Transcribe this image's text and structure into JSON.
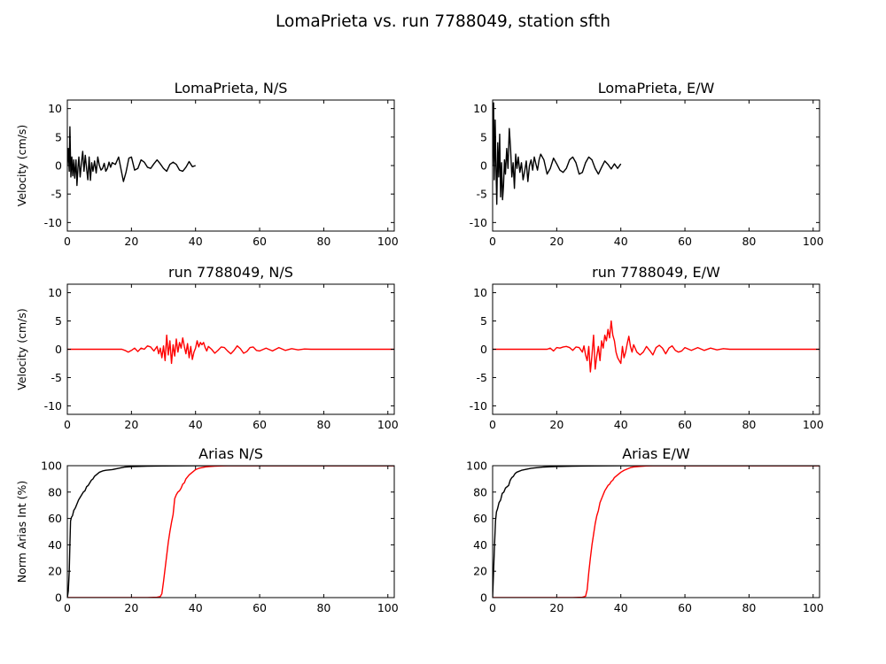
{
  "figure": {
    "title": "LomaPrieta vs. run 7788049, station sfth"
  },
  "colors": {
    "recorded": "#000000",
    "simulated": "#ff0000"
  },
  "chart_data": [
    {
      "id": "p00",
      "type": "line",
      "title": "LomaPrieta, N/S",
      "ylabel": "Velocity (cm/s)",
      "xlim": [
        0,
        102
      ],
      "ylim": [
        -11.5,
        11.5
      ],
      "xticks": [
        0,
        20,
        40,
        60,
        80,
        100
      ],
      "yticks": [
        -10,
        -5,
        0,
        5,
        10
      ],
      "series": [
        {
          "color": "#000000",
          "x": [
            0,
            0.3,
            0.6,
            0.8,
            1.1,
            1.4,
            1.7,
            2,
            2.3,
            2.7,
            3,
            3.3,
            3.6,
            4,
            4.4,
            4.8,
            5.2,
            5.6,
            6,
            6.4,
            6.8,
            7.2,
            7.6,
            8,
            8.5,
            9,
            9.5,
            10,
            10.5,
            11,
            11.5,
            12,
            12.5,
            13,
            13.5,
            14,
            15,
            16,
            16.8,
            17.5,
            18.3,
            19.2,
            20,
            21,
            22,
            23,
            24,
            25,
            26,
            27,
            28,
            29,
            30,
            31,
            32,
            33,
            34,
            35,
            36,
            37,
            38,
            39,
            40
          ],
          "y": [
            0,
            3,
            -1,
            6.8,
            -2,
            1.5,
            -1.8,
            1,
            -2.2,
            1,
            -3.5,
            -0.5,
            1.5,
            -2,
            0.5,
            2.5,
            -1,
            1.8,
            -0.5,
            -2.5,
            1.5,
            -2.6,
            0.5,
            -1,
            0.8,
            -1.3,
            1.5,
            0,
            -0.8,
            -0.5,
            0.4,
            -1,
            -0.5,
            0.6,
            -0.3,
            0.5,
            0.2,
            1.5,
            -0.8,
            -2.8,
            -1.2,
            1.3,
            1.5,
            -0.8,
            -0.5,
            1,
            0.6,
            -0.3,
            -0.5,
            0.3,
            1,
            0.3,
            -0.5,
            -1,
            0.2,
            0.6,
            0.2,
            -0.8,
            -1,
            -0.3,
            0.7,
            -0.2,
            0
          ]
        }
      ]
    },
    {
      "id": "p01",
      "type": "line",
      "title": "LomaPrieta, E/W",
      "ylabel": "",
      "xlim": [
        0,
        102
      ],
      "ylim": [
        -11.5,
        11.5
      ],
      "xticks": [
        0,
        20,
        40,
        60,
        80,
        100
      ],
      "yticks": [
        -10,
        -5,
        0,
        5,
        10
      ],
      "series": [
        {
          "color": "#000000",
          "x": [
            0,
            0.3,
            0.5,
            0.8,
            1,
            1.3,
            1.6,
            1.9,
            2.2,
            2.5,
            2.8,
            3.1,
            3.4,
            3.7,
            4,
            4.4,
            4.8,
            5.2,
            5.6,
            6,
            6.4,
            6.8,
            7.2,
            7.6,
            8,
            8.5,
            9,
            9.5,
            10,
            10.5,
            11,
            11.5,
            12,
            12.5,
            13,
            13.5,
            14,
            14.5,
            15,
            16,
            17,
            18,
            19,
            20,
            21,
            22,
            23,
            24,
            25,
            26,
            27,
            28,
            29,
            30,
            31,
            32,
            33,
            34,
            35,
            36,
            37,
            38,
            39,
            40
          ],
          "y": [
            0,
            11,
            -2.5,
            8,
            1,
            -6.8,
            4,
            -2,
            5.5,
            -5.5,
            0.5,
            -6,
            -3.5,
            1,
            -1.5,
            3,
            -0.5,
            6.5,
            3,
            -2,
            0.5,
            -4,
            2,
            -0.5,
            1.5,
            -1.2,
            0.5,
            -2.5,
            -1,
            0.8,
            -2.8,
            0,
            1,
            -0.8,
            1.5,
            0.3,
            -0.8,
            1,
            2,
            1,
            -1.5,
            -0.5,
            1.3,
            0.3,
            -0.8,
            -1.2,
            -0.5,
            1,
            1.5,
            0.5,
            -1.5,
            -1.2,
            0.5,
            1.5,
            1,
            -0.5,
            -1.5,
            -0.3,
            0.8,
            0.2,
            -0.6,
            0.3,
            -0.5,
            0.3
          ]
        }
      ]
    },
    {
      "id": "p10",
      "type": "line",
      "title": "run 7788049, N/S",
      "ylabel": "Velocity (cm/s)",
      "xlim": [
        0,
        102
      ],
      "ylim": [
        -11.5,
        11.5
      ],
      "xticks": [
        0,
        20,
        40,
        60,
        80,
        100
      ],
      "yticks": [
        -10,
        -5,
        0,
        5,
        10
      ],
      "series": [
        {
          "color": "#ff0000",
          "x": [
            0,
            10,
            17,
            18,
            19,
            20,
            21,
            22,
            23,
            24,
            25,
            26,
            27,
            28,
            28.5,
            29,
            29.5,
            30,
            30.5,
            31,
            31.5,
            32,
            32.5,
            33,
            33.5,
            34,
            34.5,
            35,
            35.5,
            36,
            36.5,
            37,
            37.5,
            38,
            38.5,
            39,
            39.5,
            40,
            40.5,
            41,
            41.5,
            42,
            42.5,
            43,
            43.5,
            44,
            45,
            46,
            47,
            48,
            49,
            50,
            51,
            52,
            53,
            54,
            55,
            56,
            57,
            58,
            59,
            60,
            62,
            64,
            66,
            68,
            70,
            72,
            74,
            76,
            80,
            90,
            102
          ],
          "y": [
            0,
            0,
            0,
            -0.2,
            -0.5,
            -0.2,
            0.2,
            -0.4,
            0.2,
            0,
            0.6,
            0.4,
            -0.3,
            0.5,
            -0.8,
            0.2,
            -1.5,
            0.6,
            -2,
            2.5,
            -1,
            1.5,
            -2.5,
            0.8,
            -1.2,
            1.8,
            -0.5,
            1.2,
            0.2,
            2,
            0.5,
            -0.8,
            1,
            -1.5,
            0.5,
            -1.8,
            -0.5,
            0.2,
            1.5,
            0.4,
            1.2,
            0.8,
            1.2,
            0.3,
            -0.3,
            0.5,
            0,
            -0.7,
            -0.2,
            0.4,
            0.3,
            -0.3,
            -0.8,
            -0.2,
            0.6,
            0.1,
            -0.7,
            -0.4,
            0.3,
            0.4,
            -0.2,
            -0.3,
            0.2,
            -0.3,
            0.3,
            -0.2,
            0.1,
            -0.1,
            0.05,
            0,
            0,
            0,
            0
          ]
        }
      ]
    },
    {
      "id": "p11",
      "type": "line",
      "title": "run 7788049, E/W",
      "ylabel": "",
      "xlim": [
        0,
        102
      ],
      "ylim": [
        -11.5,
        11.5
      ],
      "xticks": [
        0,
        20,
        40,
        60,
        80,
        100
      ],
      "yticks": [
        -10,
        -5,
        0,
        5,
        10
      ],
      "series": [
        {
          "color": "#ff0000",
          "x": [
            0,
            10,
            17,
            18,
            19,
            20,
            21,
            22,
            23,
            24,
            25,
            26,
            27,
            28,
            28.5,
            29,
            29.5,
            30,
            30.5,
            31,
            31.5,
            32,
            32.5,
            33,
            33.5,
            34,
            34.5,
            35,
            35.5,
            36,
            36.5,
            37,
            37.5,
            38,
            38.5,
            39,
            39.5,
            40,
            40.5,
            41,
            41.5,
            42,
            42.5,
            43,
            43.5,
            44,
            45,
            46,
            47,
            48,
            49,
            50,
            51,
            52,
            53,
            54,
            55,
            56,
            57,
            58,
            59,
            60,
            62,
            64,
            66,
            68,
            70,
            72,
            74,
            76,
            80,
            90,
            102
          ],
          "y": [
            0,
            0,
            0,
            0.2,
            -0.3,
            0.3,
            0.2,
            0.4,
            0.5,
            0.3,
            -0.2,
            0.4,
            0.3,
            -0.5,
            0.6,
            -1,
            -2,
            0.5,
            -4,
            -1,
            2.5,
            -3.5,
            -1.2,
            0.5,
            -2,
            1.5,
            0.2,
            2.5,
            1.5,
            3.5,
            2,
            5,
            2.5,
            1.5,
            -0.5,
            -1.5,
            -2,
            -2.5,
            0.5,
            -1.5,
            -0.5,
            1,
            2.3,
            0.5,
            -0.5,
            0.8,
            -0.5,
            -1,
            -0.5,
            0.5,
            -0.2,
            -1,
            0.3,
            0.7,
            0.2,
            -0.8,
            0.2,
            0.6,
            -0.2,
            -0.5,
            -0.3,
            0.3,
            -0.2,
            0.3,
            -0.2,
            0.2,
            -0.1,
            0.1,
            0,
            0,
            0,
            0,
            0
          ]
        }
      ]
    },
    {
      "id": "p20",
      "type": "line",
      "title": "Arias N/S",
      "ylabel": "Norm Arias Int (%)",
      "xlim": [
        0,
        102
      ],
      "ylim": [
        0,
        100
      ],
      "xticks": [
        0,
        20,
        40,
        60,
        80,
        100
      ],
      "yticks": [
        0,
        20,
        40,
        60,
        80,
        100
      ],
      "series": [
        {
          "color": "#000000",
          "x": [
            0,
            0.3,
            0.6,
            0.8,
            1,
            1.3,
            1.6,
            2,
            2.5,
            3,
            3.5,
            4,
            4.5,
            5,
            5.5,
            6,
            6.5,
            7,
            7.5,
            8,
            8.5,
            9,
            9.5,
            10,
            11,
            12,
            14,
            16,
            18,
            20,
            25,
            30,
            40,
            50,
            102
          ],
          "y": [
            0,
            5,
            20,
            40,
            58,
            61,
            62,
            66,
            68,
            71,
            74,
            76,
            78,
            80,
            81,
            84,
            85,
            87,
            89,
            90,
            92,
            93,
            94,
            95,
            96,
            96.5,
            97,
            98,
            99,
            99.3,
            99.6,
            99.8,
            100,
            100,
            100
          ]
        },
        {
          "color": "#ff0000",
          "x": [
            0,
            25,
            28,
            29,
            29.5,
            30,
            30.5,
            31,
            31.5,
            32,
            32.5,
            33,
            33.5,
            34,
            34.5,
            35,
            35.5,
            36,
            36.5,
            37,
            38,
            39,
            40,
            41,
            42,
            43,
            44,
            46,
            48,
            50,
            102
          ],
          "y": [
            0,
            0,
            0.3,
            0.8,
            3,
            12,
            22,
            32,
            42,
            50,
            57,
            63,
            75,
            78,
            80,
            81,
            83,
            86,
            87,
            90,
            93,
            95,
            97,
            98,
            98.5,
            99,
            99.3,
            99.6,
            99.8,
            100,
            100
          ]
        }
      ]
    },
    {
      "id": "p21",
      "type": "line",
      "title": "Arias E/W",
      "ylabel": "",
      "xlim": [
        0,
        102
      ],
      "ylim": [
        0,
        100
      ],
      "xticks": [
        0,
        20,
        40,
        60,
        80,
        100
      ],
      "yticks": [
        0,
        20,
        40,
        60,
        80,
        100
      ],
      "series": [
        {
          "color": "#000000",
          "x": [
            0,
            0.3,
            0.6,
            0.9,
            1.2,
            1.5,
            2,
            2.5,
            3,
            3.5,
            4,
            4.5,
            5,
            5.5,
            6,
            6.5,
            7,
            7.5,
            8,
            9,
            10,
            11,
            12,
            14,
            16,
            18,
            20,
            25,
            30,
            40,
            102
          ],
          "y": [
            0,
            20,
            40,
            58,
            65,
            67,
            72,
            74,
            79,
            80,
            83,
            84,
            85,
            89,
            91,
            92,
            94,
            95,
            95.5,
            96.5,
            97,
            97.5,
            98,
            98.5,
            99,
            99.2,
            99.4,
            99.6,
            99.8,
            100,
            100
          ]
        },
        {
          "color": "#ff0000",
          "x": [
            0,
            25,
            28,
            29,
            29.5,
            30,
            30.5,
            31,
            31.5,
            32,
            32.5,
            33,
            33.5,
            34,
            34.5,
            35,
            35.5,
            36,
            36.5,
            37,
            37.5,
            38,
            38.5,
            39,
            39.5,
            40,
            41,
            42,
            43,
            44,
            46,
            48,
            50,
            102
          ],
          "y": [
            0,
            0,
            0.3,
            1,
            6,
            19,
            30,
            40,
            48,
            56,
            62,
            66,
            72,
            75,
            78,
            81,
            83,
            85,
            86,
            88,
            89,
            91,
            92,
            93,
            94,
            95,
            96.5,
            97.5,
            98.5,
            99,
            99.5,
            99.8,
            100,
            100
          ]
        }
      ]
    }
  ]
}
